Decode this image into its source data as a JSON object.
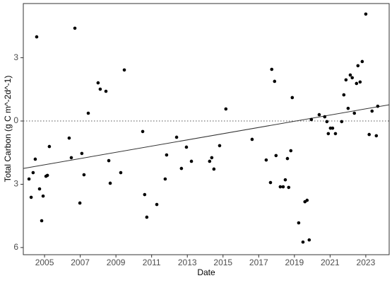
{
  "chart_data": {
    "type": "scatter",
    "x_label": "Date",
    "y_label": "Total Carbon (g C m^-2d^-1)",
    "xlim": [
      2003.81,
      2024.31
    ],
    "ylim": [
      -6.34,
      5.57
    ],
    "xticks": [
      2005,
      2007,
      2009,
      2011,
      2013,
      2015,
      2017,
      2019,
      2021,
      2023
    ],
    "yticks": [
      {
        "value": -6,
        "label": "6"
      },
      {
        "value": -3,
        "label": "3"
      },
      0,
      3
    ],
    "reference_line": 0,
    "trend": {
      "x": [
        2003.81,
        2024.31
      ],
      "y": [
        -2.25,
        0.77
      ]
    },
    "color": "#000000",
    "x": [
      2004.13,
      2004.25,
      2004.36,
      2004.48,
      2004.56,
      2004.72,
      2004.84,
      2004.92,
      2005.08,
      2005.16,
      2005.27,
      2006.38,
      2006.5,
      2006.7,
      2006.98,
      2007.09,
      2007.21,
      2007.45,
      2008.0,
      2008.12,
      2008.44,
      2008.6,
      2008.68,
      2009.27,
      2009.47,
      2010.5,
      2010.61,
      2010.73,
      2011.29,
      2011.76,
      2011.84,
      2012.4,
      2012.67,
      2012.95,
      2013.23,
      2014.25,
      2014.37,
      2014.49,
      2014.81,
      2015.16,
      2016.63,
      2017.42,
      2017.66,
      2017.73,
      2017.89,
      2017.97,
      2018.21,
      2018.37,
      2018.49,
      2018.61,
      2018.68,
      2018.8,
      2018.88,
      2019.24,
      2019.48,
      2019.59,
      2019.71,
      2019.83,
      2019.95,
      2020.39,
      2020.7,
      2020.82,
      2020.9,
      2021.02,
      2021.14,
      2021.3,
      2021.65,
      2021.77,
      2021.89,
      2022.01,
      2022.13,
      2022.24,
      2022.36,
      2022.48,
      2022.56,
      2022.68,
      2022.8,
      2023.0,
      2023.19,
      2023.35,
      2023.59,
      2023.67
    ],
    "values": [
      -2.75,
      -3.62,
      -2.45,
      -1.81,
      3.99,
      -3.22,
      -4.73,
      -3.56,
      -2.62,
      -2.58,
      -1.21,
      -0.81,
      -1.74,
      4.4,
      -3.89,
      -1.54,
      -2.55,
      0.37,
      1.81,
      1.51,
      1.41,
      -1.88,
      -2.95,
      -2.45,
      2.42,
      -0.5,
      -3.49,
      -4.56,
      -3.96,
      -2.75,
      -1.61,
      -0.77,
      -2.25,
      -1.24,
      -1.91,
      -1.91,
      -1.74,
      -2.28,
      -1.17,
      0.57,
      -0.87,
      -1.85,
      -2.92,
      2.45,
      1.88,
      -1.64,
      -3.12,
      -3.12,
      -2.79,
      -1.78,
      -3.15,
      -1.41,
      1.11,
      -4.83,
      -5.74,
      -3.83,
      -3.76,
      -5.64,
      0.07,
      0.3,
      0.2,
      -0.03,
      -0.6,
      -0.34,
      -0.34,
      -0.6,
      -0.03,
      1.24,
      1.95,
      0.6,
      2.18,
      2.05,
      0.37,
      1.78,
      2.62,
      1.85,
      2.82,
      5.07,
      -0.64,
      0.47,
      -0.7,
      0.7
    ]
  }
}
